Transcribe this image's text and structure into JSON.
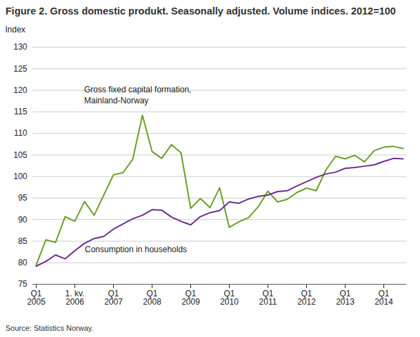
{
  "chart_data": {
    "type": "line",
    "title": "Figure 2. Gross domestic produkt. Seasonally adjusted. Volume indices. 2012=100",
    "y_label": "Index",
    "source": "Source: Statistics Norway.",
    "categories": [
      "Q1\n2005",
      null,
      null,
      null,
      "1. kv.\n2006",
      null,
      null,
      null,
      "Q1\n2007",
      null,
      null,
      null,
      "Q1\n2008",
      null,
      null,
      null,
      "Q1\n2009",
      null,
      null,
      null,
      "Q1\n2010",
      null,
      null,
      null,
      "Q1\n2011",
      null,
      null,
      null,
      "Q1\n2012",
      null,
      null,
      null,
      "Q1\n2013",
      null,
      null,
      null,
      "Q1\n2014",
      null,
      null
    ],
    "series": [
      {
        "name": "Gross fixed capital formation,\nMainland-Norway",
        "color": "#6a9e2a",
        "values": [
          79.5,
          85.3,
          84.7,
          90.7,
          89.6,
          94.2,
          91.0,
          95.7,
          100.4,
          100.9,
          104.0,
          114.2,
          105.8,
          104.2,
          107.4,
          105.5,
          92.6,
          94.9,
          92.8,
          97.4,
          88.2,
          89.5,
          90.5,
          93.0,
          96.6,
          94.1,
          94.7,
          96.3,
          97.3,
          96.7,
          101.5,
          104.7,
          104.1,
          104.9,
          103.4,
          106.0,
          106.8,
          107.0,
          106.5
        ]
      },
      {
        "name": "Consumption  in households",
        "color": "#6e2c8e",
        "values": [
          79.2,
          80.3,
          81.8,
          80.9,
          82.8,
          84.5,
          85.6,
          86.1,
          87.8,
          89.0,
          90.2,
          91.0,
          92.3,
          92.2,
          90.6,
          89.6,
          88.8,
          90.7,
          91.6,
          92.1,
          94.1,
          93.8,
          94.8,
          95.4,
          95.7,
          96.5,
          96.7,
          97.8,
          98.8,
          99.8,
          100.6,
          101.0,
          101.9,
          102.1,
          102.4,
          102.7,
          103.5,
          104.2,
          104.1
        ]
      }
    ],
    "ylim": [
      75,
      130
    ],
    "yticks": [
      75,
      80,
      85,
      90,
      95,
      100,
      105,
      110,
      115,
      120,
      125,
      130
    ],
    "grid": true
  }
}
